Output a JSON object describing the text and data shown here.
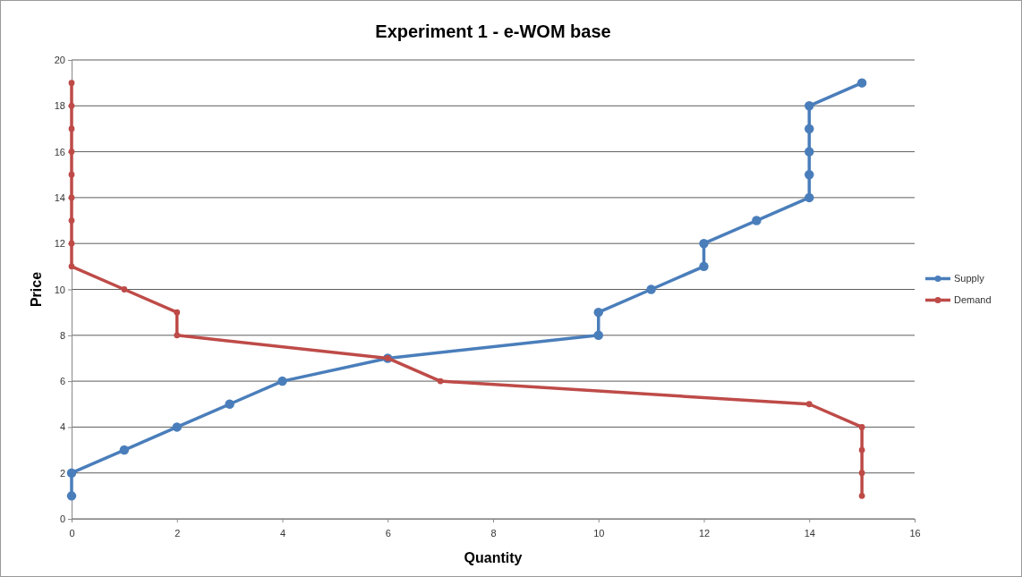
{
  "chart_data": {
    "type": "line",
    "title": "Experiment 1 - e-WOM base",
    "xlabel": "Quantity",
    "ylabel": "Price",
    "xlim": [
      0,
      16
    ],
    "xticks": [
      0,
      2,
      4,
      6,
      8,
      10,
      12,
      14,
      16
    ],
    "ylim": [
      0,
      20
    ],
    "yticks": [
      0,
      2,
      4,
      6,
      8,
      10,
      12,
      14,
      16,
      18,
      20
    ],
    "grid": "y",
    "legend": "right",
    "marker": "circle",
    "line_style": "solid",
    "series": [
      {
        "name": "Supply",
        "color": "#4a7ebb",
        "x": [
          0,
          0,
          1,
          2,
          3,
          4,
          6,
          10,
          10,
          11,
          12,
          12,
          13,
          14,
          14,
          14,
          14,
          14,
          15
        ],
        "values": [
          1,
          2,
          3,
          4,
          5,
          6,
          7,
          8,
          9,
          10,
          11,
          12,
          13,
          14,
          15,
          16,
          17,
          18,
          19
        ]
      },
      {
        "name": "Demand",
        "color": "#be4b48",
        "x": [
          0,
          0,
          0,
          0,
          0,
          0,
          0,
          0,
          0,
          1,
          2,
          2,
          6,
          7,
          14,
          15,
          15,
          15,
          15
        ],
        "values": [
          19,
          18,
          17,
          16,
          15,
          14,
          13,
          12,
          11,
          10,
          9,
          8,
          7,
          6,
          5,
          4,
          3,
          2,
          1
        ]
      }
    ]
  }
}
